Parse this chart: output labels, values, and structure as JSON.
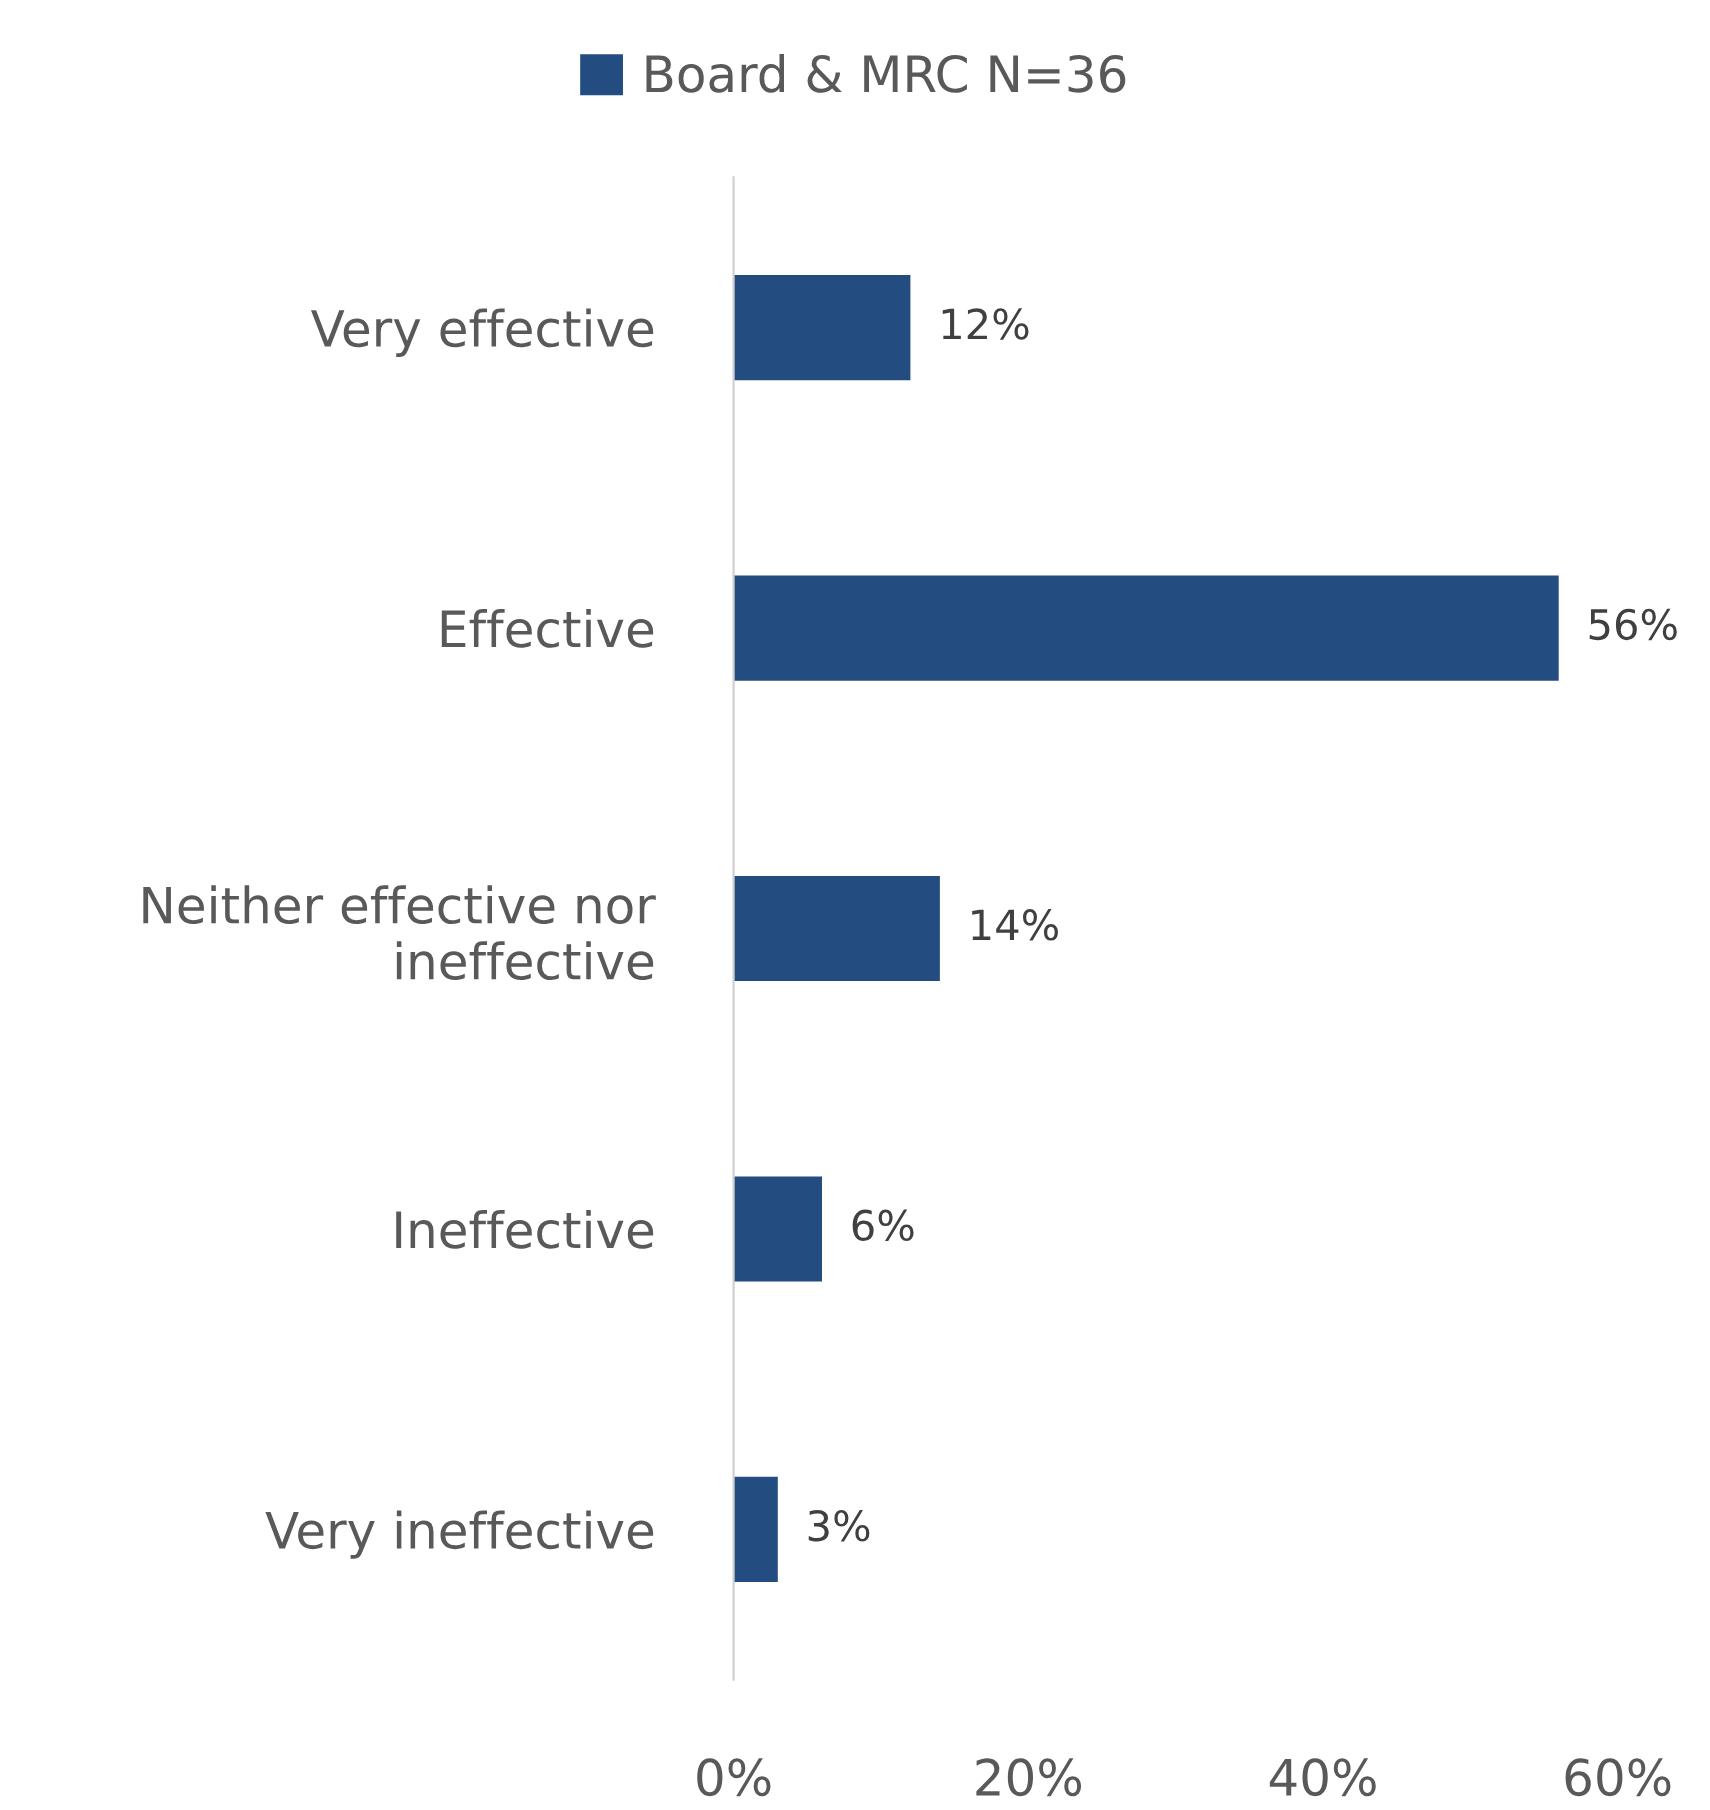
{
  "chart_data": {
    "type": "bar",
    "orientation": "horizontal",
    "categories": [
      "Very effective",
      "Effective",
      "Neither effective nor\nineffective",
      "Ineffective",
      "Very ineffective"
    ],
    "series": [
      {
        "name": "Board & MRC N=36",
        "color": "#234c80",
        "values": [
          12,
          56,
          14,
          6,
          3
        ],
        "value_labels": [
          "12%",
          "56%",
          "14%",
          "6%",
          "3%"
        ]
      }
    ],
    "xlim": [
      0,
      60
    ],
    "xticks": [
      {
        "value": 0,
        "label": "0%"
      },
      {
        "value": 20,
        "label": "20%"
      },
      {
        "value": 40,
        "label": "40%"
      },
      {
        "value": 60,
        "label": "60%"
      }
    ],
    "grid": false,
    "legend": "top"
  }
}
